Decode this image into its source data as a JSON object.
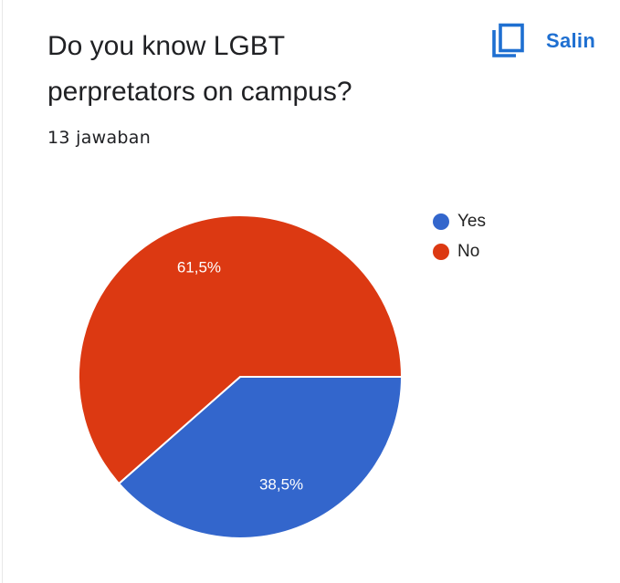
{
  "question": {
    "title": "Do you know LGBT perpretators on campus?",
    "response_count": "13 jawaban"
  },
  "copy_button": {
    "label": "Salin",
    "icon": "copy-icon",
    "color": "#1e6fd1"
  },
  "chart_data": {
    "type": "pie",
    "slices": [
      {
        "label": "Yes",
        "value": 38.5,
        "display": "38,5%",
        "color": "#3366cc"
      },
      {
        "label": "No",
        "value": 61.5,
        "display": "61,5%",
        "color": "#dc3912"
      }
    ],
    "legend_position": "top-right"
  }
}
